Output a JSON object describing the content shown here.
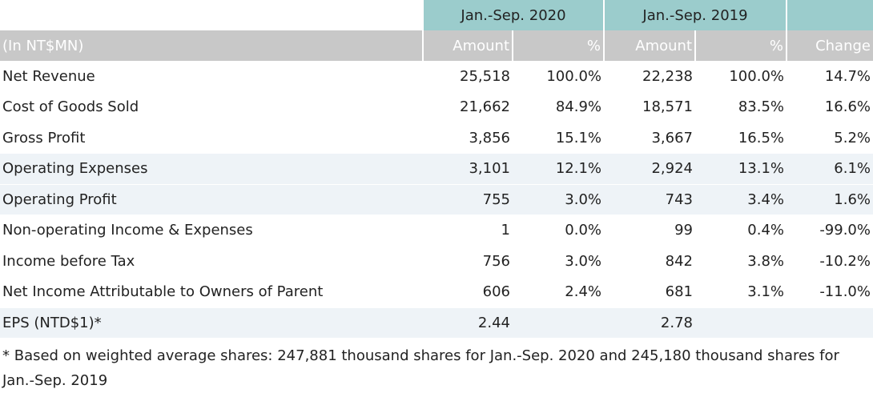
{
  "header": {
    "period_2020": "Jan.-Sep. 2020",
    "period_2019": "Jan.-Sep. 2019"
  },
  "subheader": {
    "unit": "(In NT$MN)",
    "amount_2020": "Amount",
    "pct_2020": "%",
    "amount_2019": "Amount",
    "pct_2019": "%",
    "change": "Change"
  },
  "rows": [
    {
      "label": "Net Revenue",
      "amt2020": "25,518",
      "pct2020": "100.0%",
      "amt2019": "22,238",
      "pct2019": "100.0%",
      "change": "14.7%"
    },
    {
      "label": "Cost of Goods Sold",
      "amt2020": "21,662",
      "pct2020": "84.9%",
      "amt2019": "18,571",
      "pct2019": "83.5%",
      "change": "16.6%"
    },
    {
      "label": "Gross Profit",
      "amt2020": "3,856",
      "pct2020": "15.1%",
      "amt2019": "3,667",
      "pct2019": "16.5%",
      "change": "5.2%"
    },
    {
      "label": "Operating Expenses",
      "amt2020": "3,101",
      "pct2020": "12.1%",
      "amt2019": "2,924",
      "pct2019": "13.1%",
      "change": "6.1%"
    },
    {
      "label": "Operating Profit",
      "amt2020": "755",
      "pct2020": "3.0%",
      "amt2019": "743",
      "pct2019": "3.4%",
      "change": "1.6%"
    },
    {
      "label": "Non-operating Income & Expenses",
      "amt2020": "1",
      "pct2020": "0.0%",
      "amt2019": "99",
      "pct2019": "0.4%",
      "change": "-99.0%"
    },
    {
      "label": "Income before Tax",
      "amt2020": "756",
      "pct2020": "3.0%",
      "amt2019": "842",
      "pct2019": "3.8%",
      "change": "-10.2%"
    },
    {
      "label": "Net Income Attributable to Owners of Parent",
      "amt2020": "606",
      "pct2020": "2.4%",
      "amt2019": "681",
      "pct2019": "3.1%",
      "change": "-11.0%"
    },
    {
      "label": "EPS (NTD$1)*",
      "amt2020": "2.44",
      "pct2020": "",
      "amt2019": "2.78",
      "pct2019": "",
      "change": ""
    }
  ],
  "footnote": "* Based on weighted average shares: 247,881 thousand shares for Jan.-Sep. 2020 and 245,180 thousand shares for Jan.-Sep. 2019",
  "colors": {
    "period_header_bg": "#9bcccc",
    "subheader_bg": "#c8c8c8",
    "shaded_row_bg": "#eef3f7"
  }
}
